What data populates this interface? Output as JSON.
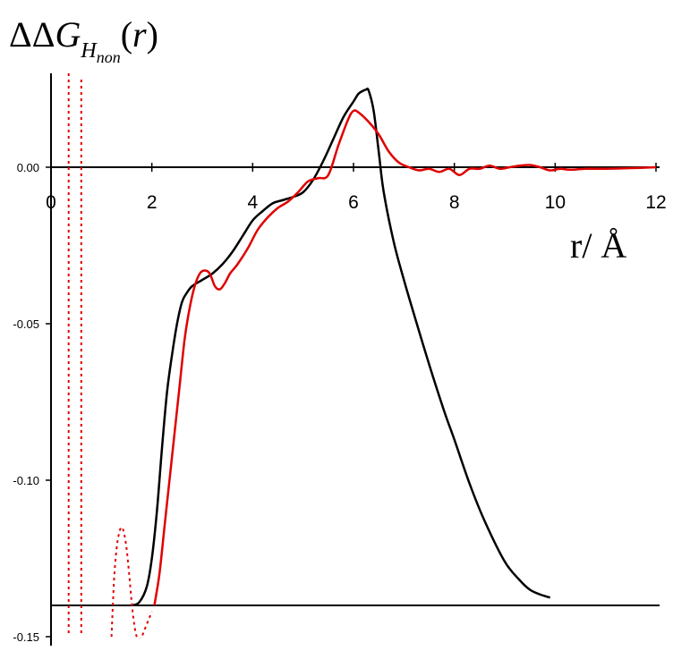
{
  "chart_data": {
    "type": "line",
    "title": "",
    "ylabel": {
      "prefix": "ΔΔ",
      "main": "G",
      "subscript": "H",
      "subsubscript": "non",
      "suffix_open": "(",
      "arg": "r",
      "suffix_close": ")"
    },
    "xlabel": "r/ Å",
    "xlim": [
      0,
      12
    ],
    "ylim": [
      -0.15,
      0.03
    ],
    "x_ticks": [
      "0",
      "2",
      "4",
      "6",
      "8",
      "10",
      "12"
    ],
    "y_ticks": [
      "0.00",
      "-0.05",
      "-0.10",
      "-0.15"
    ],
    "y_tick_values": [
      0.0,
      -0.05,
      -0.1,
      -0.15
    ],
    "x_tick_values": [
      0,
      2,
      4,
      6,
      8,
      10,
      12
    ],
    "baseline_y": -0.14,
    "grid": false,
    "legend": "none",
    "series": [
      {
        "color": "#000000",
        "style": "solid",
        "x": [
          1.6,
          1.75,
          1.9,
          2.0,
          2.1,
          2.2,
          2.3,
          2.4,
          2.5,
          2.6,
          2.7,
          2.8,
          3.0,
          3.2,
          3.4,
          3.6,
          3.8,
          4.0,
          4.2,
          4.4,
          4.6,
          4.8,
          5.0,
          5.2,
          5.4,
          5.6,
          5.8,
          6.0,
          6.1,
          6.2,
          6.25,
          6.3,
          6.4,
          6.5,
          6.6,
          6.8,
          7.0,
          7.2,
          7.5,
          7.8,
          8.0,
          8.3,
          8.6,
          9.0,
          9.3,
          9.5,
          9.7,
          9.9
        ],
        "y": [
          -0.14,
          -0.139,
          -0.134,
          -0.125,
          -0.11,
          -0.09,
          -0.072,
          -0.06,
          -0.05,
          -0.043,
          -0.04,
          -0.038,
          -0.036,
          -0.034,
          -0.031,
          -0.027,
          -0.022,
          -0.017,
          -0.014,
          -0.0115,
          -0.0105,
          -0.0095,
          -0.008,
          -0.004,
          0.002,
          0.009,
          0.016,
          0.021,
          0.0235,
          0.0245,
          0.0248,
          0.0245,
          0.018,
          0.005,
          -0.008,
          -0.024,
          -0.036,
          -0.047,
          -0.063,
          -0.078,
          -0.087,
          -0.101,
          -0.113,
          -0.126,
          -0.132,
          -0.135,
          -0.1365,
          -0.1375
        ]
      },
      {
        "color": "#e00000",
        "style": "solid",
        "x": [
          2.05,
          2.15,
          2.25,
          2.35,
          2.45,
          2.55,
          2.65,
          2.75,
          2.85,
          2.95,
          3.05,
          3.15,
          3.25,
          3.35,
          3.45,
          3.55,
          3.7,
          3.9,
          4.1,
          4.3,
          4.5,
          4.7,
          4.9,
          5.1,
          5.3,
          5.5,
          5.7,
          5.9,
          6.0,
          6.1,
          6.3,
          6.5,
          6.7,
          6.9,
          7.1,
          7.3,
          7.5,
          7.7,
          7.9,
          8.1,
          8.3,
          8.5,
          8.7,
          8.9,
          9.1,
          9.3,
          9.5,
          9.7,
          9.9,
          10.1,
          10.3,
          10.6,
          11.0,
          11.5,
          12.0
        ],
        "y": [
          -0.14,
          -0.13,
          -0.115,
          -0.1,
          -0.085,
          -0.07,
          -0.055,
          -0.045,
          -0.038,
          -0.034,
          -0.033,
          -0.034,
          -0.038,
          -0.039,
          -0.037,
          -0.034,
          -0.031,
          -0.026,
          -0.02,
          -0.016,
          -0.013,
          -0.011,
          -0.008,
          -0.0045,
          -0.0035,
          -0.0025,
          0.007,
          0.0155,
          0.018,
          0.0175,
          0.0145,
          0.0105,
          0.005,
          0.0015,
          0.0,
          -0.001,
          -0.0005,
          -0.0015,
          -0.0005,
          -0.0025,
          -0.0005,
          -0.0005,
          0.0005,
          -0.0005,
          0.0,
          0.0005,
          0.0007,
          0.0,
          -0.001,
          -0.0005,
          -0.0008,
          -0.0005,
          -0.0005,
          -0.0003,
          0.0
        ]
      },
      {
        "color": "#e00000",
        "style": "dotted",
        "segments": [
          {
            "x": [
              0.35,
              0.35
            ],
            "y": [
              0.03,
              -0.15
            ]
          },
          {
            "x": [
              0.6,
              0.6
            ],
            "y": [
              0.028,
              -0.15
            ]
          },
          {
            "x": [
              1.2,
              1.25,
              1.3,
              1.35,
              1.4,
              1.45,
              1.5,
              1.55,
              1.6,
              1.65,
              1.7,
              1.75,
              1.8,
              1.85,
              1.9,
              1.95,
              2.0
            ],
            "y": [
              -0.15,
              -0.132,
              -0.122,
              -0.117,
              -0.115,
              -0.117,
              -0.122,
              -0.13,
              -0.139,
              -0.146,
              -0.15,
              -0.151,
              -0.15,
              -0.148,
              -0.146,
              -0.144,
              -0.142
            ]
          }
        ]
      }
    ]
  }
}
